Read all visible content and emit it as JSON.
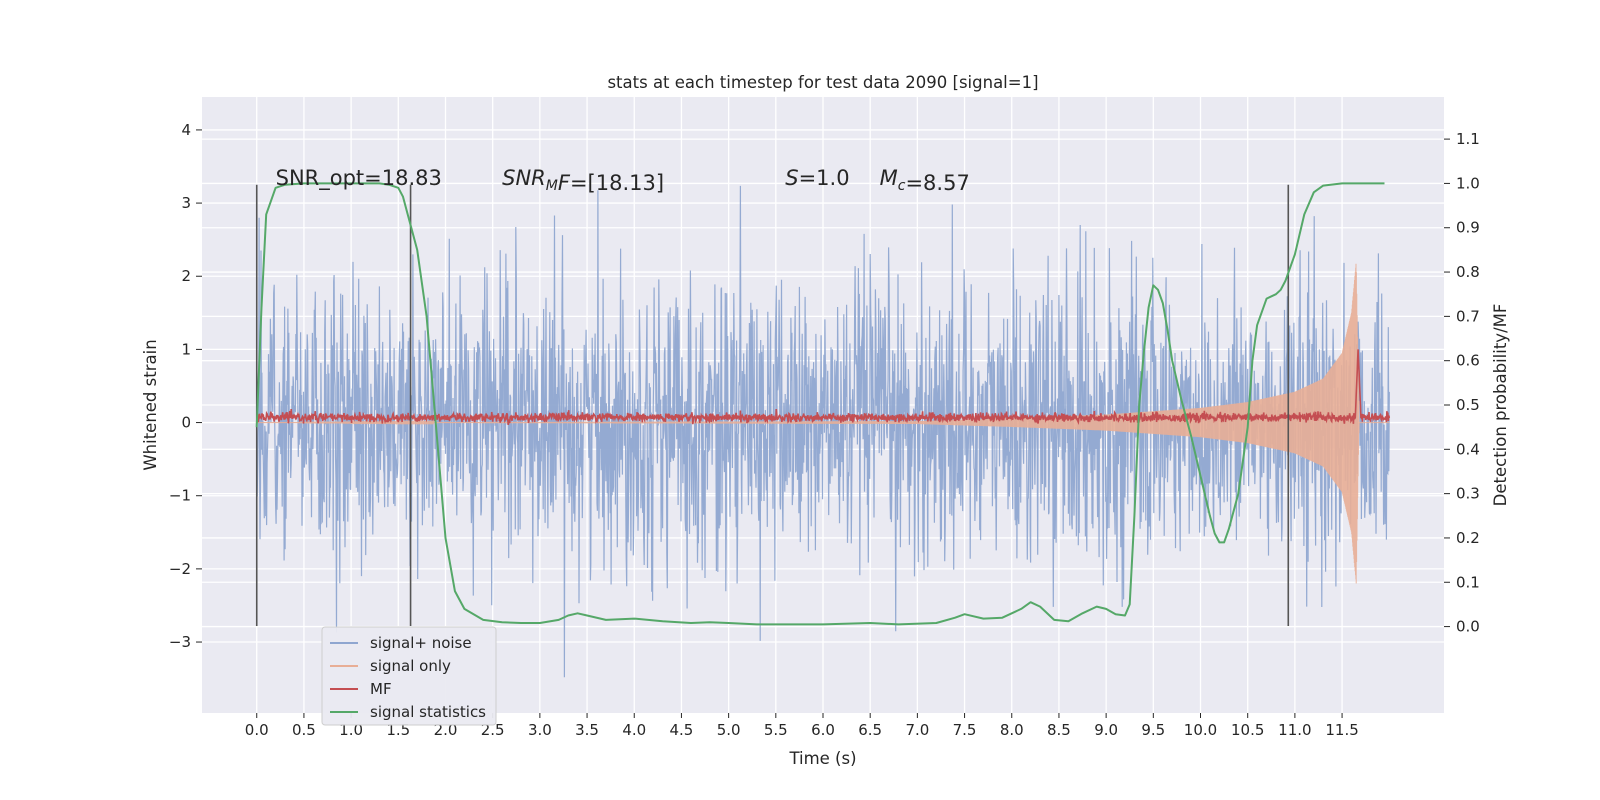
{
  "chart_data": {
    "type": "line",
    "title": "stats at each timestep for test data 2090 [signal=1]",
    "xlabel": "Time (s)",
    "ylabel": "Whitened strain",
    "y2label": "Detection probability/MF",
    "xlim": [
      -0.58,
      12.58
    ],
    "ylim": [
      -3.97,
      4.45
    ],
    "y2lim": [
      -0.195,
      1.195
    ],
    "xticks": [
      0.0,
      0.5,
      1.0,
      1.5,
      2.0,
      2.5,
      3.0,
      3.5,
      4.0,
      4.5,
      5.0,
      5.5,
      6.0,
      6.5,
      7.0,
      7.5,
      8.0,
      8.5,
      9.0,
      9.5,
      10.0,
      10.5,
      11.0,
      11.5
    ],
    "xtick_labels": [
      "0.0",
      "0.5",
      "1.0",
      "1.5",
      "2.0",
      "2.5",
      "3.0",
      "3.5",
      "4.0",
      "4.5",
      "5.0",
      "5.5",
      "6.0",
      "6.5",
      "7.0",
      "7.5",
      "8.0",
      "8.5",
      "9.0",
      "9.5",
      "10.0",
      "10.5",
      "11.0",
      "11.5"
    ],
    "yticks": [
      -3,
      -2,
      -1,
      0,
      1,
      2,
      3,
      4
    ],
    "ytick_labels": [
      "−3",
      "−2",
      "−1",
      "0",
      "1",
      "2",
      "3",
      "4"
    ],
    "y2ticks": [
      0.0,
      0.1,
      0.2,
      0.3,
      0.4,
      0.5,
      0.6,
      0.7,
      0.8,
      0.9,
      1.0,
      1.1
    ],
    "y2tick_labels": [
      "0.0",
      "0.1",
      "0.2",
      "0.3",
      "0.4",
      "0.5",
      "0.6",
      "0.7",
      "0.8",
      "0.9",
      "1.0",
      "1.1"
    ],
    "grid": true,
    "legend_position": "lower-left",
    "annotations": [
      {
        "parts": [
          {
            "text": "SNR_opt=18.83",
            "style": "normal"
          }
        ],
        "x": 0.2,
        "y": 3.25
      },
      {
        "parts": [
          {
            "text": "SNR",
            "style": "italic"
          },
          {
            "text": "M",
            "style": "italic-sub"
          },
          {
            "text": "F",
            "style": "italic"
          },
          {
            "text": "=[18.13]",
            "style": "normal"
          }
        ],
        "x": 2.6,
        "y": 3.25
      },
      {
        "parts": [
          {
            "text": "S",
            "style": "italic"
          },
          {
            "text": "=1.0",
            "style": "normal"
          }
        ],
        "x": 5.6,
        "y": 3.25
      },
      {
        "parts": [
          {
            "text": "M",
            "style": "italic"
          },
          {
            "text": "c",
            "style": "italic-sub"
          },
          {
            "text": "=8.57",
            "style": "normal"
          }
        ],
        "x": 6.6,
        "y": 3.25
      }
    ],
    "vlines": [
      {
        "x": 0.0,
        "ymin": -2.78,
        "ymax": 3.25
      },
      {
        "x": 1.63,
        "ymin": -2.78,
        "ymax": 3.25
      },
      {
        "x": 10.93,
        "ymin": -2.78,
        "ymax": 3.25
      }
    ],
    "series": [
      {
        "name": "signal+ noise",
        "color": "#8fa6d0",
        "axis": "left",
        "time_range": [
          0.0,
          12.0
        ],
        "sample_rate": 200,
        "envelope_sigma": 0.95,
        "description_points": []
      },
      {
        "name": "signal only",
        "color": "#e8ae96",
        "axis": "left",
        "envelope": {
          "t": [
            7.0,
            8.0,
            9.0,
            10.0,
            10.5,
            11.0,
            11.3,
            11.5,
            11.6,
            11.65,
            11.68
          ],
          "amp": [
            0.02,
            0.06,
            0.11,
            0.2,
            0.28,
            0.42,
            0.6,
            0.95,
            1.5,
            2.2,
            0.0
          ]
        }
      },
      {
        "name": "MF",
        "color": "#c44e52",
        "axis": "left",
        "baseline": 0.07,
        "noise": 0.05,
        "peak": {
          "x": 11.67,
          "y": 1.0
        }
      },
      {
        "name": "signal statistics",
        "color": "#55a868",
        "axis": "right",
        "x": [
          0.0,
          0.05,
          0.1,
          0.2,
          0.3,
          0.5,
          1.0,
          1.3,
          1.4,
          1.5,
          1.55,
          1.6,
          1.7,
          1.8,
          1.9,
          2.0,
          2.1,
          2.2,
          2.4,
          2.6,
          2.8,
          3.0,
          3.2,
          3.3,
          3.4,
          3.5,
          3.7,
          4.0,
          4.3,
          4.6,
          4.8,
          5.0,
          5.3,
          6.0,
          6.5,
          6.8,
          7.2,
          7.4,
          7.5,
          7.7,
          7.9,
          8.1,
          8.2,
          8.3,
          8.45,
          8.6,
          8.75,
          8.9,
          9.0,
          9.1,
          9.2,
          9.25,
          9.3,
          9.35,
          9.4,
          9.45,
          9.5,
          9.55,
          9.6,
          9.65,
          9.7,
          9.8,
          9.9,
          10.0,
          10.1,
          10.15,
          10.2,
          10.25,
          10.3,
          10.4,
          10.5,
          10.55,
          10.6,
          10.7,
          10.8,
          10.85,
          10.9,
          11.0,
          11.1,
          11.2,
          11.3,
          11.5,
          11.7,
          11.9,
          11.95
        ],
        "y": [
          0.45,
          0.72,
          0.93,
          0.99,
          0.997,
          1.0,
          1.0,
          1.0,
          0.997,
          0.99,
          0.97,
          0.93,
          0.85,
          0.7,
          0.45,
          0.2,
          0.08,
          0.04,
          0.015,
          0.01,
          0.008,
          0.008,
          0.015,
          0.025,
          0.03,
          0.025,
          0.015,
          0.018,
          0.012,
          0.008,
          0.01,
          0.008,
          0.005,
          0.005,
          0.008,
          0.005,
          0.008,
          0.02,
          0.028,
          0.018,
          0.02,
          0.04,
          0.055,
          0.045,
          0.015,
          0.012,
          0.03,
          0.045,
          0.04,
          0.028,
          0.025,
          0.05,
          0.25,
          0.5,
          0.62,
          0.72,
          0.77,
          0.76,
          0.73,
          0.67,
          0.6,
          0.51,
          0.43,
          0.34,
          0.25,
          0.21,
          0.19,
          0.19,
          0.22,
          0.3,
          0.45,
          0.6,
          0.68,
          0.74,
          0.75,
          0.76,
          0.78,
          0.84,
          0.93,
          0.98,
          0.995,
          1.0,
          1.0,
          1.0,
          1.0
        ]
      }
    ]
  }
}
